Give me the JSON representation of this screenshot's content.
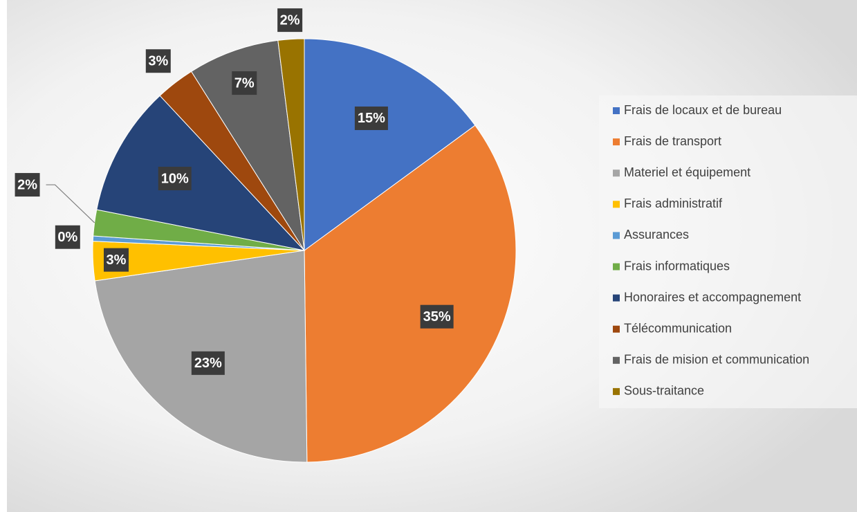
{
  "chart_data": {
    "type": "pie",
    "categories": [
      "Frais de locaux et de bureau",
      "Frais de transport",
      "Materiel et équipement",
      "Frais administratif",
      "Assurances",
      "Frais informatiques",
      "Honoraires et accompagnement",
      "Télécommunication",
      "Frais de mision et communication",
      "Sous-traitance"
    ],
    "values": [
      15,
      35,
      23,
      3,
      0.4,
      2,
      10,
      3,
      7,
      2
    ],
    "value_labels": [
      "15%",
      "35%",
      "23%",
      "3%",
      "0%",
      "2%",
      "10%",
      "3%",
      "7%",
      "2%"
    ],
    "colors": [
      "#4472c4",
      "#ed7d31",
      "#a5a5a5",
      "#ffc000",
      "#5b9bd5",
      "#70ad47",
      "#264478",
      "#9e480e",
      "#636363",
      "#997300"
    ],
    "legend": "right"
  }
}
